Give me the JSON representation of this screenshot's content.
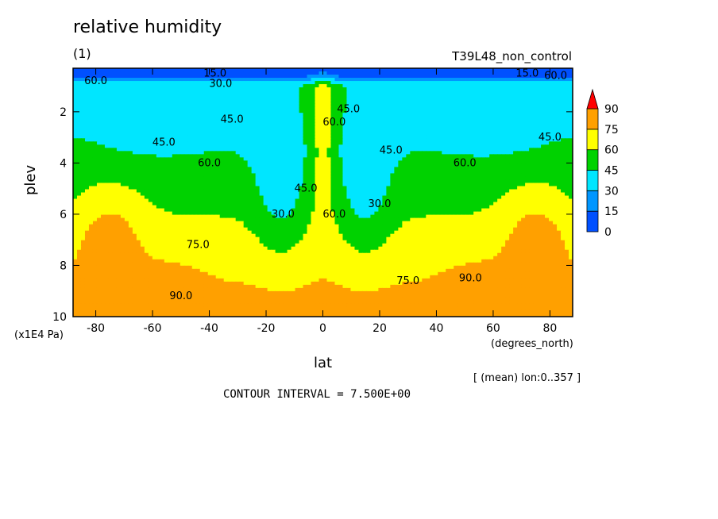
{
  "header": {
    "title": "relative humidity",
    "figure_number": "(1)",
    "run_name": "T39L48_non_control"
  },
  "footer": {
    "mean_note": "[ (mean) lon:0..357 ]",
    "contour_interval": "CONTOUR INTERVAL = 7.500E+00"
  },
  "chart_data": {
    "type": "heatmap",
    "title": "relative humidity",
    "xlabel": "lat",
    "xunits": "(degrees_north)",
    "ylabel": "plev",
    "yunits": "(x1E4 Pa)",
    "xlim": [
      -88,
      88
    ],
    "ylim": [
      10,
      0.3
    ],
    "x_ticks": [
      -80,
      -60,
      -40,
      -20,
      0,
      20,
      40,
      60,
      80
    ],
    "y_ticks": [
      2,
      4,
      6,
      8,
      10
    ],
    "contour_interval": 7.5,
    "colorbar": {
      "levels": [
        0,
        15,
        30,
        45,
        60,
        75,
        90
      ],
      "colors": [
        "#0050ff",
        "#0096ff",
        "#00e6ff",
        "#00d200",
        "#ffff00",
        "#ffa000",
        "#ff0000"
      ]
    },
    "contour_labels": [
      {
        "text": "15.0",
        "lat": -38,
        "plev": 0.5
      },
      {
        "text": "30.0",
        "lat": -36,
        "plev": 0.9
      },
      {
        "text": "60.0",
        "lat": -80,
        "plev": 0.8
      },
      {
        "text": "45.0",
        "lat": -32,
        "plev": 2.3
      },
      {
        "text": "45.0",
        "lat": -56,
        "plev": 3.2
      },
      {
        "text": "60.0",
        "lat": -40,
        "plev": 4.0
      },
      {
        "text": "75.0",
        "lat": -44,
        "plev": 7.2
      },
      {
        "text": "90.0",
        "lat": -50,
        "plev": 9.2
      },
      {
        "text": "30.0",
        "lat": -14,
        "plev": 6.0
      },
      {
        "text": "45.0",
        "lat": -6,
        "plev": 5.0
      },
      {
        "text": "60.0",
        "lat": 4,
        "plev": 2.4
      },
      {
        "text": "45.0",
        "lat": 9,
        "plev": 1.9
      },
      {
        "text": "60.0",
        "lat": 4,
        "plev": 6.0
      },
      {
        "text": "45.0",
        "lat": 24,
        "plev": 3.5
      },
      {
        "text": "30.0",
        "lat": 20,
        "plev": 5.6
      },
      {
        "text": "75.0",
        "lat": 30,
        "plev": 8.6
      },
      {
        "text": "90.0",
        "lat": 52,
        "plev": 8.5
      },
      {
        "text": "60.0",
        "lat": 50,
        "plev": 4.0
      },
      {
        "text": "45.0",
        "lat": 80,
        "plev": 3.0
      },
      {
        "text": "15.0",
        "lat": 72,
        "plev": 0.5
      },
      {
        "text": "60.0",
        "lat": 82,
        "plev": 0.6
      }
    ]
  }
}
